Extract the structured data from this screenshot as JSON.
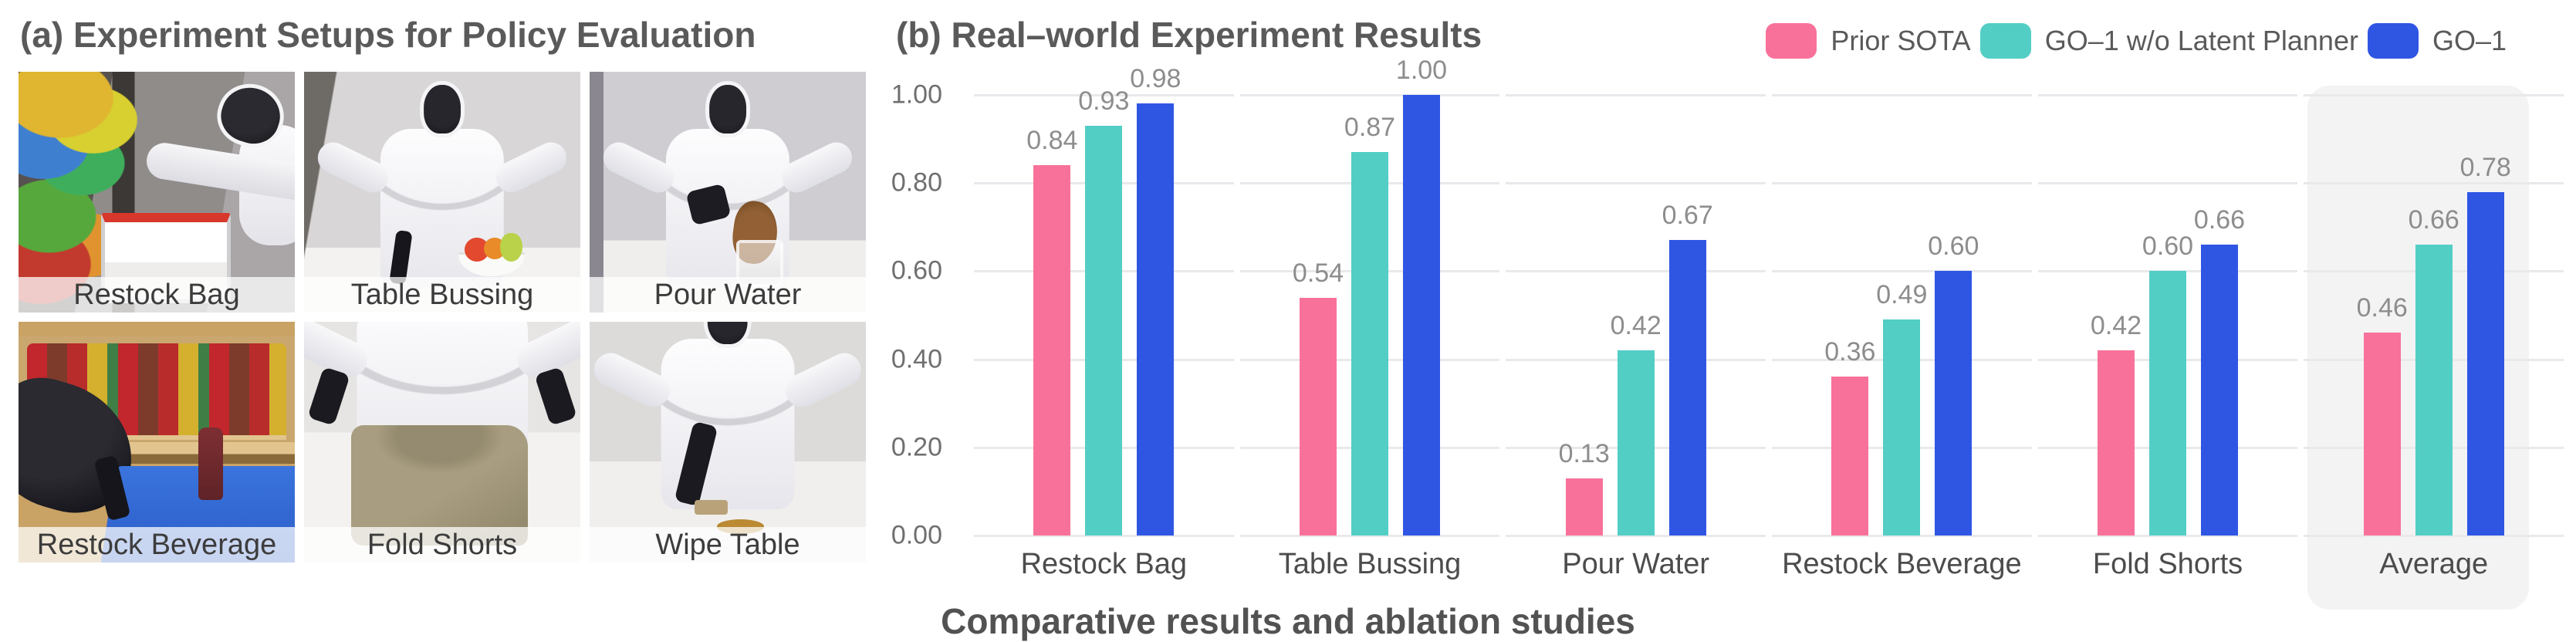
{
  "left_panel": {
    "title": "(a) Experiment Setups for Policy Evaluation",
    "photos": [
      {
        "id": "restock-bag",
        "label": "Restock Bag"
      },
      {
        "id": "table-bussing",
        "label": "Table Bussing"
      },
      {
        "id": "pour-water",
        "label": "Pour Water"
      },
      {
        "id": "restock-beverage",
        "label": "Restock Beverage"
      },
      {
        "id": "fold-shorts",
        "label": "Fold Shorts"
      },
      {
        "id": "wipe-table",
        "label": "Wipe Table"
      }
    ]
  },
  "chart": {
    "title": "(b) Real–world Experiment Results",
    "caption": "Comparative results and ablation studies"
  },
  "chart_data": {
    "type": "bar",
    "title": "(b) Real–world Experiment Results",
    "categories": [
      "Restock Bag",
      "Table Bussing",
      "Pour Water",
      "Restock Beverage",
      "Fold Shorts",
      "Average"
    ],
    "series": [
      {
        "name": "Prior SOTA",
        "color": "#F8719A",
        "values": [
          0.84,
          0.54,
          0.13,
          0.36,
          0.42,
          0.46
        ]
      },
      {
        "name": "GO–1 w/o Latent Planner",
        "color": "#52CEC5",
        "values": [
          0.93,
          0.87,
          0.42,
          0.49,
          0.6,
          0.66
        ]
      },
      {
        "name": "GO–1",
        "color": "#2F56E3",
        "values": [
          0.98,
          1.0,
          0.67,
          0.6,
          0.66,
          0.78
        ]
      }
    ],
    "ylim": [
      0,
      1.0
    ],
    "yticks": [
      "1.00",
      "0.80",
      "0.60",
      "0.40",
      "0.20",
      "0.00"
    ],
    "grid": true,
    "legend_position": "top-right",
    "highlight_category": "Average",
    "highlight_color": "#f3f3f4",
    "grid_color": "#e9e9ec",
    "value_label_color": "#8d8d8d"
  }
}
